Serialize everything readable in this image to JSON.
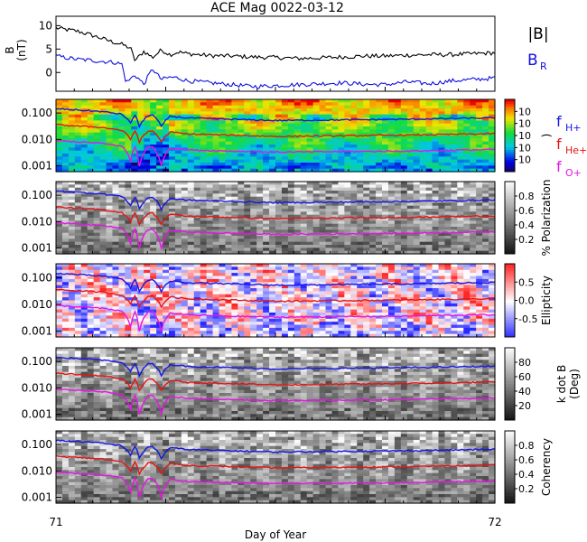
{
  "title": "ACE Mag 0022-03-12",
  "chart_data": {
    "type": "line",
    "xlabel": "Day of Year",
    "xlim": [
      71,
      72
    ],
    "x_ticks": [
      "71",
      "72"
    ],
    "panels": [
      {
        "kind": "line",
        "ylabel": "B",
        "yunit": "(nT)",
        "ylim": [
          -4,
          12
        ],
        "y_ticks": [
          "10",
          "5",
          "0"
        ],
        "y_tick_values": [
          10,
          5,
          0
        ],
        "legend": [
          "|B|",
          "B"
        ],
        "legend_sub": [
          "",
          "R"
        ],
        "series": [
          {
            "name": "|B|",
            "color": "#000000",
            "x": [
              71.0,
              71.02,
              71.05,
              71.08,
              71.1,
              71.13,
              71.15,
              71.17,
              71.18,
              71.2,
              71.22,
              71.24,
              71.26,
              71.28,
              71.3,
              71.35,
              71.4,
              71.45,
              71.5,
              71.55,
              71.6,
              71.65,
              71.7,
              71.75,
              71.8,
              71.85,
              71.9,
              71.95,
              72.0
            ],
            "y": [
              9.5,
              9.2,
              8.8,
              8.0,
              7.4,
              6.5,
              6.0,
              5.2,
              2.5,
              4.5,
              3.2,
              4.8,
              3.8,
              4.4,
              4.0,
              3.6,
              3.5,
              3.3,
              3.2,
              3.0,
              3.1,
              3.3,
              3.5,
              3.5,
              3.7,
              3.8,
              3.8,
              4.0,
              4.2
            ]
          },
          {
            "name": "B",
            "color": "#1010e0",
            "x": [
              71.0,
              71.02,
              71.05,
              71.08,
              71.1,
              71.13,
              71.15,
              71.16,
              71.18,
              71.2,
              71.22,
              71.24,
              71.26,
              71.28,
              71.3,
              71.35,
              71.4,
              71.45,
              71.5,
              71.55,
              71.6,
              71.65,
              71.7,
              71.75,
              71.8,
              71.85,
              71.9,
              71.95,
              72.0
            ],
            "y": [
              3.5,
              3.2,
              2.8,
              2.6,
              2.4,
              2.2,
              1.8,
              -2.2,
              -0.5,
              -2.5,
              0.8,
              -1.5,
              -1.0,
              -1.2,
              -1.8,
              -2.2,
              -2.6,
              -3.0,
              -2.8,
              -2.6,
              -2.4,
              -2.2,
              -2.5,
              -2.6,
              -2.0,
              -2.4,
              -1.8,
              -1.5,
              -1.2
            ]
          }
        ]
      },
      {
        "kind": "spectrogram",
        "palette": "rainbow",
        "y_ticks": [
          "0.100",
          "0.010",
          "0.001"
        ],
        "colorbar_label": ")",
        "colorbar_ticks": [
          "10",
          "10",
          "10",
          "10",
          "10"
        ],
        "line_legend": [
          "f",
          "f",
          "f"
        ],
        "line_legend_sub": [
          "H+",
          "He+",
          "O+"
        ]
      },
      {
        "kind": "spectrogram",
        "palette": "gray",
        "y_ticks": [
          "0.100",
          "0.010",
          "0.001"
        ],
        "colorbar_label": "% Polarization",
        "colorbar_ticks": [
          "0.8",
          "0.6",
          "0.4",
          "0.2"
        ]
      },
      {
        "kind": "spectrogram",
        "palette": "bwr",
        "y_ticks": [
          "0.100",
          "0.010",
          "0.001"
        ],
        "colorbar_label": "Ellipticity",
        "colorbar_ticks": [
          "0.5",
          "0.0",
          "-0.5"
        ]
      },
      {
        "kind": "spectrogram",
        "palette": "gray",
        "y_ticks": [
          "0.100",
          "0.010",
          "0.001"
        ],
        "colorbar_label": "k dot B",
        "colorbar_label2": "(Deg)",
        "colorbar_ticks": [
          "80",
          "60",
          "40",
          "20"
        ]
      },
      {
        "kind": "spectrogram",
        "palette": "gray",
        "y_ticks": [
          "0.100",
          "0.010",
          "0.001"
        ],
        "colorbar_label": "Coherency",
        "colorbar_ticks": [
          "0.8",
          "0.6",
          "0.4",
          "0.2"
        ]
      }
    ],
    "gyrofrequency_lines": [
      {
        "name": "f H+",
        "color": "#1414e6",
        "x": [
          71.0,
          71.05,
          71.1,
          71.15,
          71.17,
          71.18,
          71.19,
          71.21,
          71.22,
          71.24,
          71.26,
          71.3,
          71.4,
          71.5,
          71.6,
          71.7,
          71.8,
          71.9,
          72.0
        ],
        "y": [
          0.145,
          0.13,
          0.115,
          0.09,
          0.04,
          0.085,
          0.03,
          0.08,
          0.085,
          0.03,
          0.075,
          0.065,
          0.058,
          0.052,
          0.054,
          0.056,
          0.058,
          0.062,
          0.066
        ]
      },
      {
        "name": "f He+",
        "color": "#e61414",
        "x": [
          71.0,
          71.05,
          71.1,
          71.15,
          71.17,
          71.18,
          71.19,
          71.21,
          71.22,
          71.24,
          71.26,
          71.3,
          71.4,
          71.5,
          71.6,
          71.7,
          71.8,
          71.9,
          72.0
        ],
        "y": [
          0.036,
          0.032,
          0.029,
          0.022,
          0.01,
          0.021,
          0.008,
          0.02,
          0.021,
          0.008,
          0.019,
          0.016,
          0.0145,
          0.013,
          0.0135,
          0.014,
          0.0145,
          0.0155,
          0.0165
        ]
      },
      {
        "name": "f O+",
        "color": "#e614e6",
        "x": [
          71.0,
          71.05,
          71.1,
          71.15,
          71.17,
          71.18,
          71.19,
          71.21,
          71.22,
          71.24,
          71.26,
          71.3,
          71.4,
          71.5,
          71.6,
          71.7,
          71.8,
          71.9,
          72.0
        ],
        "y": [
          0.009,
          0.008,
          0.0072,
          0.0055,
          0.0015,
          0.0052,
          0.001,
          0.005,
          0.0052,
          0.001,
          0.0047,
          0.004,
          0.0036,
          0.0033,
          0.0034,
          0.0035,
          0.0036,
          0.0039,
          0.0041
        ]
      }
    ]
  }
}
